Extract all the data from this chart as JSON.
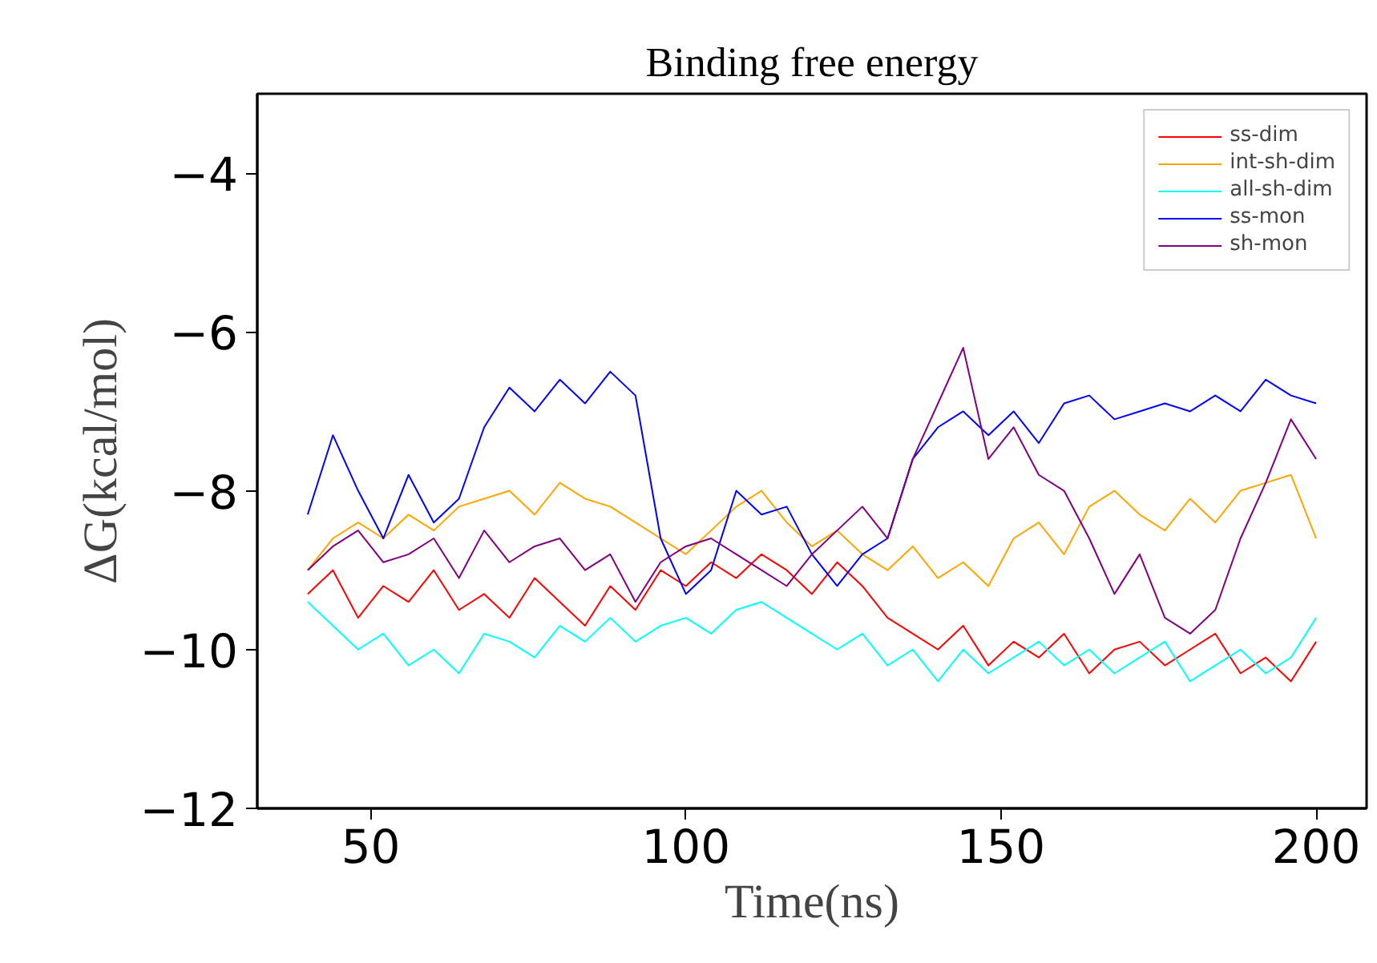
{
  "chart_data": {
    "type": "line",
    "title": "Binding free energy",
    "xlabel": "Time(ns)",
    "ylabel": "ΔG(kcal/mol)",
    "x": [
      40,
      44,
      48,
      52,
      56,
      60,
      64,
      68,
      72,
      76,
      80,
      84,
      88,
      92,
      96,
      100,
      104,
      108,
      112,
      116,
      120,
      124,
      128,
      132,
      136,
      140,
      144,
      148,
      152,
      156,
      160,
      164,
      168,
      172,
      176,
      180,
      184,
      188,
      192,
      196,
      200
    ],
    "xlim": [
      32,
      208
    ],
    "ylim": [
      -12,
      -3
    ],
    "xticks": [
      50,
      100,
      150,
      200
    ],
    "yticks": [
      -12,
      -10,
      -8,
      -6,
      -4
    ],
    "grid": false,
    "legend": "top right",
    "line_style": "solid",
    "marker": "none",
    "series": [
      {
        "name": "ss-dim",
        "color": "#ff0000",
        "values": [
          -9.3,
          -9.0,
          -9.6,
          -9.2,
          -9.4,
          -9.0,
          -9.5,
          -9.3,
          -9.6,
          -9.1,
          -9.4,
          -9.7,
          -9.2,
          -9.5,
          -9.0,
          -9.2,
          -8.9,
          -9.1,
          -8.8,
          -9.0,
          -9.3,
          -8.9,
          -9.2,
          -9.6,
          -9.8,
          -10.0,
          -9.7,
          -10.2,
          -9.9,
          -10.1,
          -9.8,
          -10.3,
          -10.0,
          -9.9,
          -10.2,
          -10.0,
          -9.8,
          -10.3,
          -10.1,
          -10.4,
          -9.9
        ]
      },
      {
        "name": "int-sh-dim",
        "color": "#ffa500",
        "values": [
          -9.0,
          -8.6,
          -8.4,
          -8.6,
          -8.3,
          -8.5,
          -8.2,
          -8.1,
          -8.0,
          -8.3,
          -7.9,
          -8.1,
          -8.2,
          -8.4,
          -8.6,
          -8.8,
          -8.5,
          -8.2,
          -8.0,
          -8.4,
          -8.7,
          -8.5,
          -8.8,
          -9.0,
          -8.7,
          -9.1,
          -8.9,
          -9.2,
          -8.6,
          -8.4,
          -8.8,
          -8.2,
          -8.0,
          -8.3,
          -8.5,
          -8.1,
          -8.4,
          -8.0,
          -7.9,
          -7.8,
          -8.6
        ]
      },
      {
        "name": "all-sh-dim",
        "color": "#00ffff",
        "values": [
          -9.4,
          -9.7,
          -10.0,
          -9.8,
          -10.2,
          -10.0,
          -10.3,
          -9.8,
          -9.9,
          -10.1,
          -9.7,
          -9.9,
          -9.6,
          -9.9,
          -9.7,
          -9.6,
          -9.8,
          -9.5,
          -9.4,
          -9.6,
          -9.8,
          -10.0,
          -9.8,
          -10.2,
          -10.0,
          -10.4,
          -10.0,
          -10.3,
          -10.1,
          -9.9,
          -10.2,
          -10.0,
          -10.3,
          -10.1,
          -9.9,
          -10.4,
          -10.2,
          -10.0,
          -10.3,
          -10.1,
          -9.6
        ]
      },
      {
        "name": "ss-mon",
        "color": "#0000ff",
        "values": [
          -8.3,
          -7.3,
          -8.0,
          -8.6,
          -7.8,
          -8.4,
          -8.1,
          -7.2,
          -6.7,
          -7.0,
          -6.6,
          -6.9,
          -6.5,
          -6.8,
          -8.6,
          -9.3,
          -9.0,
          -8.0,
          -8.3,
          -8.2,
          -8.8,
          -9.2,
          -8.8,
          -8.6,
          -7.6,
          -7.2,
          -7.0,
          -7.3,
          -7.0,
          -7.4,
          -6.9,
          -6.8,
          -7.1,
          -7.0,
          -6.9,
          -7.0,
          -6.8,
          -7.0,
          -6.6,
          -6.8,
          -6.9
        ]
      },
      {
        "name": "sh-mon",
        "color": "#800080",
        "values": [
          -9.0,
          -8.7,
          -8.5,
          -8.9,
          -8.8,
          -8.6,
          -9.1,
          -8.5,
          -8.9,
          -8.7,
          -8.6,
          -9.0,
          -8.8,
          -9.4,
          -8.9,
          -8.7,
          -8.6,
          -8.8,
          -9.0,
          -9.2,
          -8.8,
          -8.5,
          -8.2,
          -8.6,
          -7.6,
          -6.9,
          -6.2,
          -7.6,
          -7.2,
          -7.8,
          -8.0,
          -8.6,
          -9.3,
          -8.8,
          -9.6,
          -9.8,
          -9.5,
          -8.6,
          -7.9,
          -7.1,
          -7.6
        ]
      }
    ]
  }
}
